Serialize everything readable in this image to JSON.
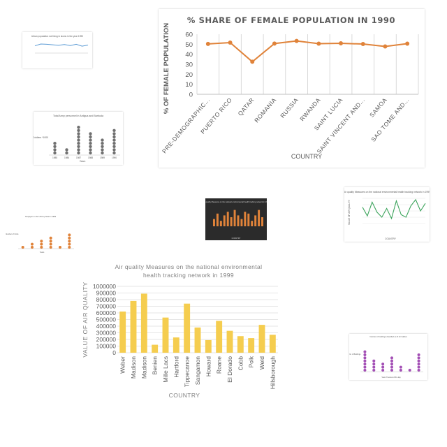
{
  "chart_data": [
    {
      "id": "female",
      "type": "line",
      "title": "% SHARE OF FEMALE POPULATION IN 1990",
      "xlabel": "COUNTRY",
      "ylabel": "% OF FEMALE POPULATION",
      "categories": [
        "PRE-DEMOGRAPHIC...",
        "PUERTO RICO",
        "QATAR",
        "ROMANIA",
        "RUSSIA",
        "RWANDA",
        "SAINT LUCIA",
        "SAINT VINCENT AND...",
        "SAMOA",
        "SAO TOME AND..."
      ],
      "values": [
        50.3,
        51.6,
        32.5,
        50.7,
        53.3,
        50.6,
        50.9,
        50.2,
        47.8,
        50.6
      ],
      "ylim": [
        0,
        60
      ],
      "yticks": [
        0,
        10,
        20,
        30,
        40,
        50,
        60
      ],
      "color": "#e0833a",
      "grid": "vertical"
    },
    {
      "id": "air",
      "type": "bar",
      "title": "Air quality Measures on the national environmental health tracking network in 1999",
      "xlabel": "COUNTRY",
      "ylabel": "VALUE OF AIR QUALITY",
      "categories": [
        "Weber",
        "Madison",
        "Madison",
        "Benien",
        "Mille Lacs",
        "Hartford",
        "Tippecanoe",
        "Sangamon",
        "Howard",
        "Roane",
        "El Dorado",
        "Cobb",
        "Polk",
        "Weld",
        "Hillsborough"
      ],
      "values": [
        620000,
        780000,
        890000,
        120000,
        530000,
        230000,
        740000,
        380000,
        190000,
        480000,
        330000,
        250000,
        220000,
        420000,
        270000
      ],
      "ylim": [
        0,
        1000000
      ],
      "yticks": [
        0,
        100000,
        200000,
        300000,
        400000,
        500000,
        600000,
        700000,
        800000,
        900000,
        1000000
      ],
      "color": "#f5cd4f",
      "grid": "horizontal"
    },
    {
      "id": "thumb_urban",
      "type": "line",
      "title": "Urban population not living in slums in the year 1990",
      "values": [
        58,
        72,
        70,
        66,
        62,
        68,
        60,
        70,
        55,
        64
      ],
      "ylim": [
        0,
        100
      ],
      "color": "#5b9bd5"
    },
    {
      "id": "thumb_soldiers",
      "type": "scatter",
      "title": "Total Army personnel in Antigua and Barbuda",
      "xlabel": "Years",
      "ylabel": "Soldiers *1000",
      "categories": [
        "1985",
        "1986",
        "1987",
        "1988",
        "1989",
        "1990"
      ],
      "values": [
        4,
        2,
        9,
        7,
        5,
        8
      ],
      "color": "#707070"
    },
    {
      "id": "thumb_dark",
      "type": "bar",
      "title": "Air quality Measures on the national environmental health tracking network in 1999",
      "xlabel": "COUNTRY",
      "values": [
        4,
        7,
        3,
        6,
        8,
        5,
        9,
        6,
        4,
        8,
        7,
        3,
        6,
        9,
        5
      ],
      "color": "#e0833a"
    },
    {
      "id": "thumb_green",
      "type": "line",
      "title": "Air quality Measures on the national environmental health tracking network in 1999",
      "xlabel": "COUNTRY",
      "ylabel": "VALUE OF AIR QUALITY",
      "values": [
        65000,
        30000,
        85000,
        45000,
        25000,
        60000,
        20000,
        90000,
        35000,
        25000,
        70000,
        95000,
        50000,
        80000
      ],
      "ylim": [
        0,
        100000
      ],
      "color": "#3aa35a"
    },
    {
      "id": "thumb_orange",
      "type": "scatter",
      "title": "Taxpayers in the USA by State in 1999",
      "xlabel": "Years",
      "ylabel": "Number of Units",
      "values": [
        1,
        2,
        3,
        4,
        1,
        5
      ],
      "color": "#e0833a"
    },
    {
      "id": "thumb_purple",
      "type": "scatter",
      "title": "Number of buildings classified as fit for habitat",
      "xlabel": "Year of Census of the day",
      "ylabel": "No. of Buildings",
      "values": [
        7,
        4,
        3,
        5,
        2,
        1,
        6
      ],
      "color": "#a34fb5"
    }
  ]
}
